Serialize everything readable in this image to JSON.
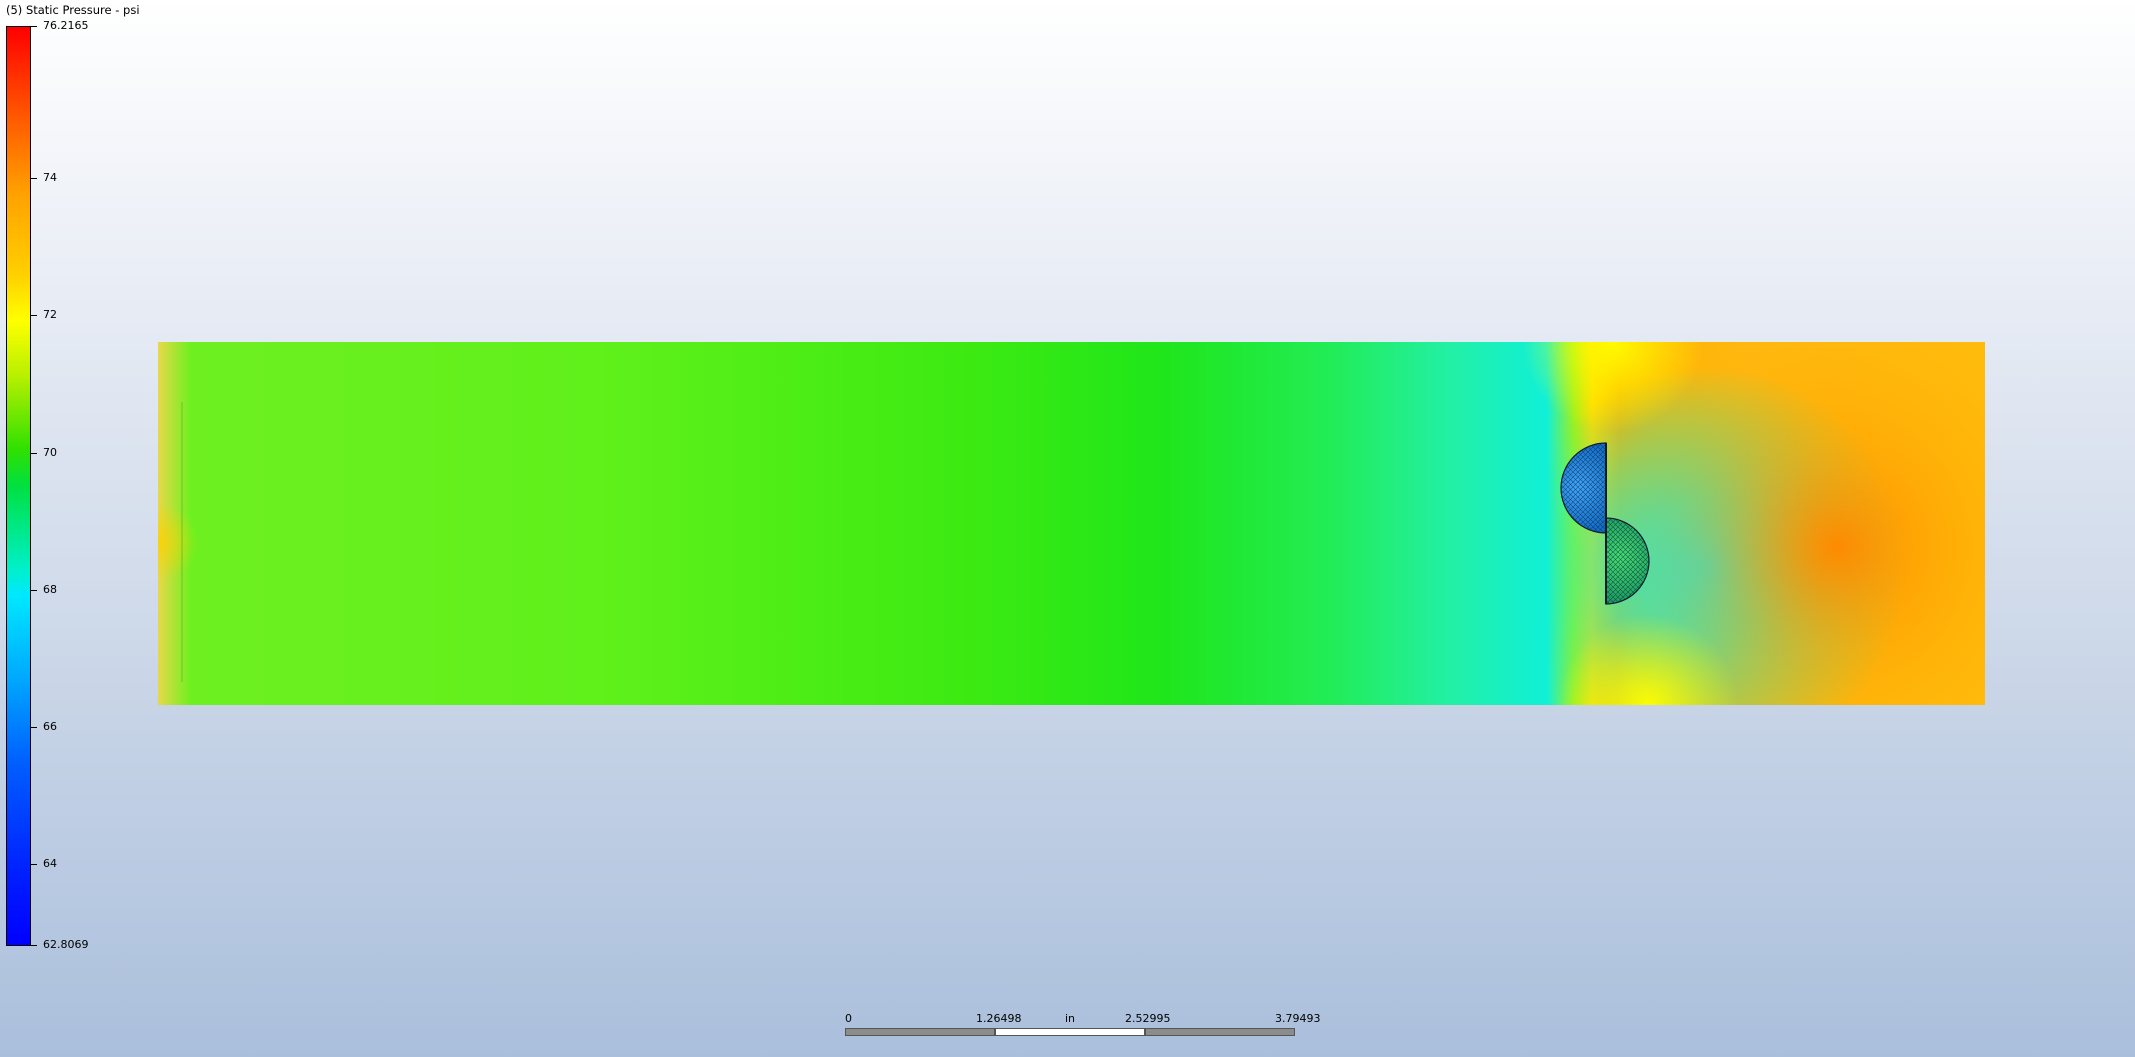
{
  "legend": {
    "title": "(5) Static Pressure - psi",
    "max_label": "76.2165",
    "min_label": "62.8069",
    "ticks": [
      "74",
      "72",
      "70",
      "68",
      "66",
      "64"
    ]
  },
  "scalebar": {
    "labels": [
      "0",
      "1.26498",
      "2.52995",
      "3.79493"
    ],
    "unit": "in"
  },
  "colors": {
    "background_top": "#ffffff",
    "background_bottom": "#aabfdc",
    "high": "#ff0000",
    "low": "#0000ff",
    "upstream_field": "#5ff01a",
    "downstream_field": "#ffb80a"
  }
}
